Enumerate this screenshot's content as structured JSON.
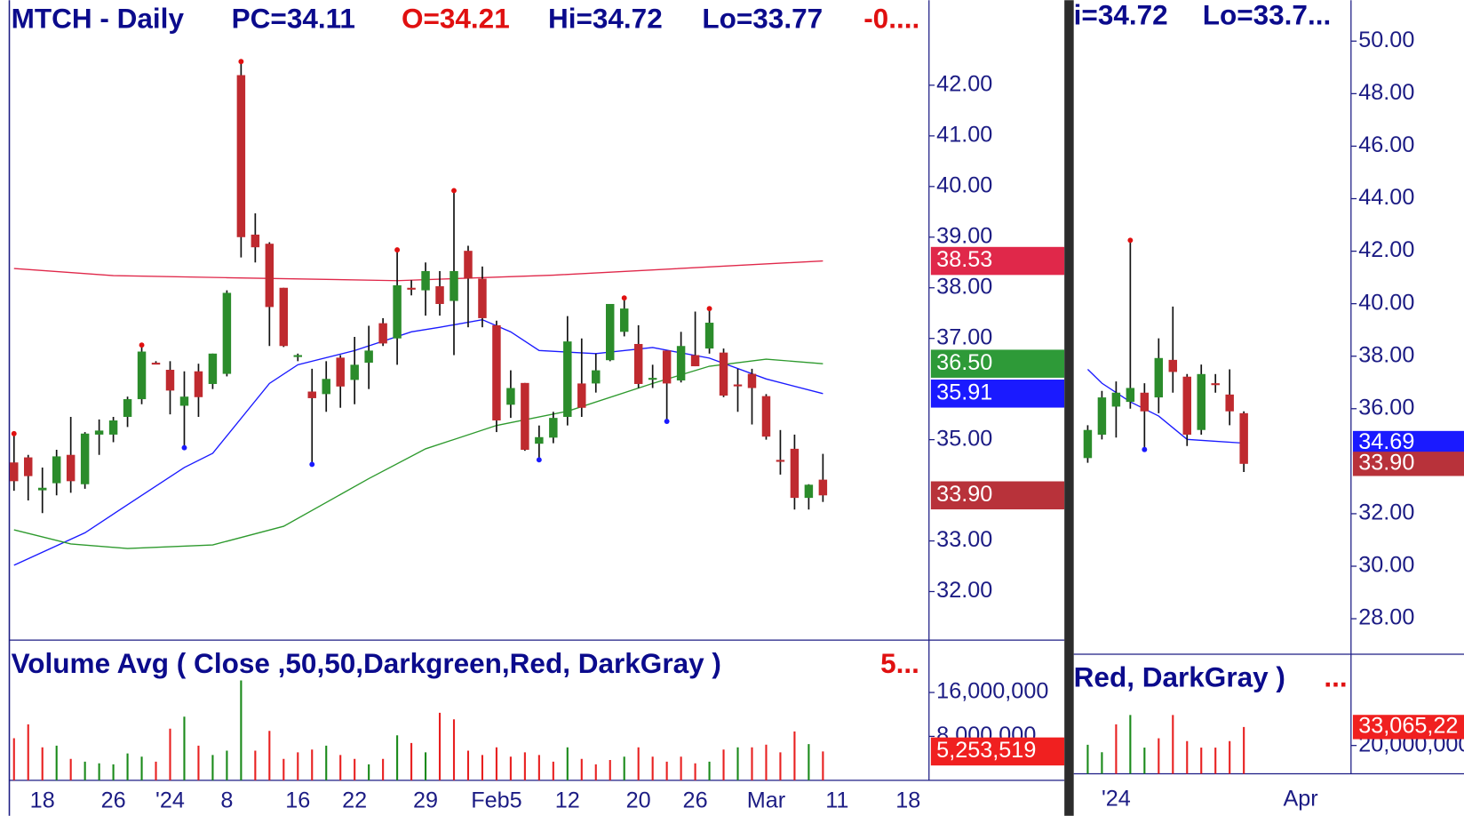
{
  "chart_data": [
    {
      "type": "candlestick",
      "header": [
        {
          "text": "MTCH - Daily",
          "color": "#0b0b8c"
        },
        {
          "text": "PC=34.11",
          "color": "#0b0b8c"
        },
        {
          "text": "O=34.21",
          "color": "#e01010"
        },
        {
          "text": "Hi=34.72",
          "color": "#0b0b8c"
        },
        {
          "text": "Lo=33.77",
          "color": "#0b0b8c"
        },
        {
          "text": "-0....",
          "color": "#e01010"
        }
      ],
      "categories": [
        null,
        null,
        "18",
        null,
        null,
        null,
        null,
        "26",
        null,
        null,
        null,
        "'24",
        null,
        null,
        null,
        "8",
        null,
        null,
        null,
        null,
        "16",
        null,
        null,
        null,
        "22",
        null,
        null,
        null,
        null,
        "29",
        null,
        null,
        null,
        null,
        "Feb5",
        null,
        null,
        null,
        null,
        "12",
        null,
        null,
        null,
        null,
        "20",
        null,
        null,
        null,
        "26",
        null,
        null,
        null,
        null,
        "Mar",
        null,
        null,
        null,
        null,
        "11",
        null,
        null,
        null,
        null,
        "18",
        null
      ],
      "open": [
        34.55,
        34.65,
        34.0,
        34.14,
        34.7,
        34.12,
        35.1,
        35.1,
        35.45,
        35.8,
        36.52,
        36.38,
        35.67,
        36.35,
        36.1,
        36.3,
        42.2,
        39.05,
        38.87,
        38.0,
        36.65,
        35.95,
        35.9,
        36.62,
        36.18,
        36.52,
        37.3,
        37.0,
        38.0,
        37.95,
        38.03,
        37.74,
        38.73,
        38.18,
        37.26,
        35.69,
        36.12,
        34.92,
        35.04,
        35.45,
        36.11,
        36.11,
        36.57,
        37.13,
        36.89,
        36.2,
        36.76,
        36.17,
        36.67,
        36.8,
        36.72,
        36.09,
        36.3,
        35.86,
        34.6,
        34.82,
        33.85,
        34.21,
        null,
        null,
        null,
        null,
        null,
        null,
        null
      ],
      "high": [
        35.1,
        34.7,
        34.45,
        34.8,
        35.45,
        35.15,
        35.4,
        35.45,
        35.85,
        36.85,
        36.55,
        36.55,
        36.35,
        36.5,
        36.7,
        37.95,
        42.45,
        39.47,
        38.9,
        38.0,
        36.7,
        36.4,
        36.55,
        36.67,
        37.03,
        37.25,
        37.4,
        38.73,
        38.15,
        38.5,
        38.33,
        39.9,
        38.83,
        38.42,
        37.35,
        36.37,
        36.12,
        35.28,
        35.55,
        37.44,
        37.0,
        36.7,
        37.68,
        37.78,
        37.26,
        36.48,
        36.76,
        37.13,
        37.53,
        37.57,
        36.8,
        36.4,
        36.4,
        35.9,
        35.19,
        35.1,
        34.12,
        34.72,
        null,
        null,
        null,
        null,
        null,
        null,
        null
      ],
      "low": [
        33.99,
        33.8,
        33.55,
        33.9,
        33.95,
        34.03,
        34.7,
        34.95,
        35.25,
        35.7,
        36.5,
        35.5,
        34.86,
        35.45,
        36.0,
        36.25,
        38.6,
        38.5,
        36.85,
        36.83,
        36.55,
        34.53,
        35.55,
        35.63,
        35.7,
        36.0,
        36.85,
        36.48,
        37.85,
        37.45,
        37.45,
        36.67,
        37.22,
        37.22,
        35.15,
        35.43,
        34.78,
        34.62,
        34.93,
        35.28,
        35.45,
        35.93,
        36.55,
        37.04,
        36.02,
        36.02,
        35.38,
        36.13,
        36.45,
        36.7,
        35.84,
        35.55,
        35.3,
        35.0,
        34.31,
        33.62,
        33.62,
        33.77,
        null,
        null,
        null,
        null,
        null,
        null,
        null
      ],
      "close": [
        34.18,
        34.28,
        34.05,
        34.67,
        34.18,
        35.12,
        35.18,
        35.38,
        35.8,
        36.74,
        36.52,
        35.97,
        35.85,
        35.84,
        36.7,
        37.9,
        39.0,
        38.8,
        37.62,
        36.85,
        36.67,
        35.82,
        36.2,
        36.05,
        36.48,
        36.76,
        36.9,
        38.05,
        38.0,
        38.33,
        37.68,
        38.33,
        38.18,
        37.4,
        35.38,
        36.02,
        34.8,
        35.05,
        35.43,
        36.94,
        35.63,
        36.37,
        37.68,
        37.59,
        36.1,
        36.22,
        36.11,
        36.85,
        36.45,
        37.31,
        35.87,
        36.08,
        36.02,
        35.06,
        34.6,
        33.85,
        34.11,
        33.9,
        null,
        null,
        null,
        null,
        null,
        null,
        null
      ],
      "up_color": "#2b8c2b",
      "down_color": "#bf2a2f",
      "wick_color": "#111111",
      "swing_highs": [
        0,
        9,
        16,
        27,
        31,
        43,
        49
      ],
      "swing_high_color": "#e01010",
      "swing_lows": [
        12,
        21,
        37,
        46
      ],
      "swing_low_color": "#1a1aff",
      "moving_averages": [
        {
          "color": "#1a1aff",
          "x": [
            0,
            5,
            9,
            12,
            14,
            18,
            20,
            24,
            28,
            30,
            33,
            35,
            37,
            41,
            45,
            49,
            53,
            57
          ],
          "values": [
            32.52,
            33.16,
            33.9,
            34.45,
            34.73,
            36.11,
            36.48,
            36.76,
            37.13,
            37.22,
            37.37,
            37.13,
            36.76,
            36.7,
            36.82,
            36.61,
            36.2,
            35.91
          ]
        },
        {
          "color": "#2e9a2e",
          "x": [
            0,
            4,
            8,
            14,
            19,
            25,
            29,
            34,
            39,
            45,
            49,
            53,
            57
          ],
          "values": [
            33.22,
            32.94,
            32.85,
            32.92,
            33.29,
            34.23,
            34.82,
            35.28,
            35.56,
            36.11,
            36.45,
            36.59,
            36.5
          ]
        },
        {
          "color": "#e0284a",
          "x": [
            0,
            7,
            15,
            27,
            38,
            57
          ],
          "values": [
            38.38,
            38.24,
            38.2,
            38.14,
            38.25,
            38.53
          ]
        }
      ],
      "price_tags": [
        {
          "value": 38.53,
          "label": "38.53",
          "color": "#e0284a"
        },
        {
          "value": 36.5,
          "label": "36.50",
          "color": "#2e9a38"
        },
        {
          "value": 35.91,
          "label": "35.91",
          "color": "#1a1aff"
        },
        {
          "value": 33.9,
          "label": "33.90",
          "color": "#b8323a"
        }
      ],
      "ylim": [
        31.04,
        43.68
      ],
      "yticks": [
        {
          "value": 32,
          "label": "32.00"
        },
        {
          "value": 33,
          "label": "33.00"
        },
        {
          "value": 35,
          "label": "35.00"
        },
        {
          "value": 37,
          "label": "37.00"
        },
        {
          "value": 38,
          "label": "38.00"
        },
        {
          "value": 39,
          "label": "39.00"
        },
        {
          "value": 40,
          "label": "40.00"
        },
        {
          "value": 41,
          "label": "41.00"
        },
        {
          "value": 42,
          "label": "42.00"
        }
      ]
    },
    {
      "type": "bar",
      "title": "Volume Avg ( Close ,50,50,Darkgreen,Red, DarkGray )",
      "title_suffix": "5...",
      "suffix_color": "#e01010",
      "values": [
        7660000,
        10200000,
        6000000,
        6300000,
        3900000,
        3400000,
        3100000,
        2900000,
        4900000,
        4300000,
        3400000,
        9400000,
        11600000,
        6300000,
        4600000,
        5400000,
        18200000,
        5400000,
        9000000,
        3900000,
        5100000,
        5600000,
        6300000,
        4600000,
        3900000,
        2900000,
        3900000,
        8200000,
        6800000,
        5100000,
        12300000,
        11100000,
        5400000,
        4600000,
        6000000,
        4300000,
        5100000,
        4600000,
        3400000,
        6000000,
        3900000,
        2900000,
        3700000,
        4300000,
        6000000,
        4300000,
        3400000,
        4300000,
        3100000,
        3400000,
        5600000,
        6000000,
        6000000,
        6500000,
        5100000,
        8900000,
        6600000,
        5253519,
        null,
        null,
        null,
        null,
        null,
        null,
        null
      ],
      "colors": [
        "#e82020",
        "#e82020",
        "#e82020",
        "#1a8a1a",
        "#e82020",
        "#1a8a1a",
        "#1a8a1a",
        "#1a8a1a",
        "#1a8a1a",
        "#1a8a1a",
        "#e82020",
        "#e82020",
        "#1a8a1a",
        "#e82020",
        "#1a8a1a",
        "#1a8a1a",
        "#1a8a1a",
        "#e82020",
        "#e82020",
        "#e82020",
        "#e82020",
        "#e82020",
        "#1a8a1a",
        "#e82020",
        "#e82020",
        "#1a8a1a",
        "#e82020",
        "#1a8a1a",
        "#e82020",
        "#1a8a1a",
        "#e82020",
        "#e82020",
        "#e82020",
        "#e82020",
        "#e82020",
        "#e82020",
        "#e82020",
        "#e82020",
        "#e82020",
        "#1a8a1a",
        "#e82020",
        "#e82020",
        "#e82020",
        "#1a8a1a",
        "#e82020",
        "#e82020",
        "#e82020",
        "#e82020",
        "#e82020",
        "#1a8a1a",
        "#e82020",
        "#1a8a1a",
        "#e82020",
        "#e82020",
        "#e82020",
        "#e82020",
        "#1a8a1a",
        "#e82020",
        null,
        null,
        null,
        null,
        null,
        null,
        null
      ],
      "value_tags": [
        {
          "value": 5253519,
          "label": "5,253,519",
          "color": "#f02020"
        }
      ],
      "ylim": [
        0,
        25360000
      ],
      "yticks": [
        {
          "value": 8000000,
          "label": "8,000,000"
        },
        {
          "value": 16000000,
          "label": "16,000,000"
        }
      ]
    },
    {
      "type": "candlestick",
      "header": [
        {
          "text": "i=34.72",
          "color": "#0b0b8c"
        },
        {
          "text": "Lo=33.7...",
          "color": "#0b0b8c"
        }
      ],
      "categories": [
        null,
        null,
        "'24",
        null,
        null,
        null,
        null,
        null,
        null,
        null,
        null,
        null,
        null,
        null,
        null,
        "Apr",
        null,
        null,
        null
      ],
      "open": [
        34.12,
        35.01,
        36.08,
        36.26,
        36.61,
        36.43,
        37.86,
        37.22,
        35.19,
        36.97,
        36.54,
        35.83,
        null,
        null,
        null,
        null,
        null,
        null,
        null
      ],
      "high": [
        35.37,
        36.68,
        37.04,
        42.38,
        36.97,
        38.68,
        39.89,
        37.32,
        37.68,
        37.32,
        37.5,
        35.9,
        null,
        null,
        null,
        null,
        null,
        null,
        null
      ],
      "low": [
        33.94,
        34.83,
        34.9,
        36.0,
        34.48,
        35.83,
        36.61,
        34.58,
        35.01,
        36.61,
        35.37,
        33.59,
        null,
        null,
        null,
        null,
        null,
        null,
        null
      ],
      "close": [
        35.19,
        36.43,
        36.61,
        36.79,
        35.9,
        37.93,
        37.4,
        35.01,
        37.32,
        36.97,
        35.9,
        33.9,
        null,
        null,
        null,
        null,
        null,
        null,
        null
      ],
      "up_color": "#2b8c2b",
      "down_color": "#bf2a2f",
      "wick_color": "#111111",
      "swing_highs": [
        3
      ],
      "swing_high_color": "#e01010",
      "swing_lows": [
        4
      ],
      "swing_low_color": "#1a1aff",
      "moving_averages": [
        {
          "color": "#1a1aff",
          "x": [
            0,
            1,
            3,
            5,
            7,
            9,
            11
          ],
          "values": [
            37.5,
            36.97,
            36.26,
            35.72,
            34.83,
            34.76,
            34.69
          ]
        }
      ],
      "price_tags": [
        {
          "value": 34.69,
          "label": "34.69",
          "color": "#1a1aff"
        },
        {
          "value": 33.9,
          "label": "33.90",
          "color": "#b8323a"
        }
      ],
      "ylim": [
        26.65,
        51.56
      ],
      "yticks": [
        {
          "value": 28,
          "label": "28.00"
        },
        {
          "value": 30,
          "label": "30.00"
        },
        {
          "value": 32,
          "label": "32.00"
        },
        {
          "value": 36,
          "label": "36.00"
        },
        {
          "value": 38,
          "label": "38.00"
        },
        {
          "value": 40,
          "label": "40.00"
        },
        {
          "value": 42,
          "label": "42.00"
        },
        {
          "value": 44,
          "label": "44.00"
        },
        {
          "value": 46,
          "label": "46.00"
        },
        {
          "value": 48,
          "label": "48.00"
        },
        {
          "value": 50,
          "label": "50.00"
        }
      ]
    },
    {
      "type": "bar",
      "title": "Red, DarkGray )",
      "title_suffix": "...",
      "suffix_color": "#e01010",
      "values": [
        20500000,
        15200000,
        35000000,
        41600000,
        18500000,
        25100000,
        41600000,
        23100000,
        18500000,
        18500000,
        23100000,
        33065220,
        null,
        null,
        null,
        null,
        null,
        null,
        null
      ],
      "colors": [
        "#1a8a1a",
        "#1a8a1a",
        "#e82020",
        "#1a8a1a",
        "#1a8a1a",
        "#e82020",
        "#e82020",
        "#e82020",
        "#e82020",
        "#e82020",
        "#e82020",
        "#e82020",
        null,
        null,
        null,
        null,
        null,
        null,
        null
      ],
      "value_tags": [
        {
          "value": 33065220,
          "label": "33,065,22",
          "color": "#f02020"
        }
      ],
      "ylim": [
        0,
        84600000
      ],
      "yticks": [
        {
          "value": 20000000,
          "label": "20,000,000"
        }
      ]
    }
  ]
}
